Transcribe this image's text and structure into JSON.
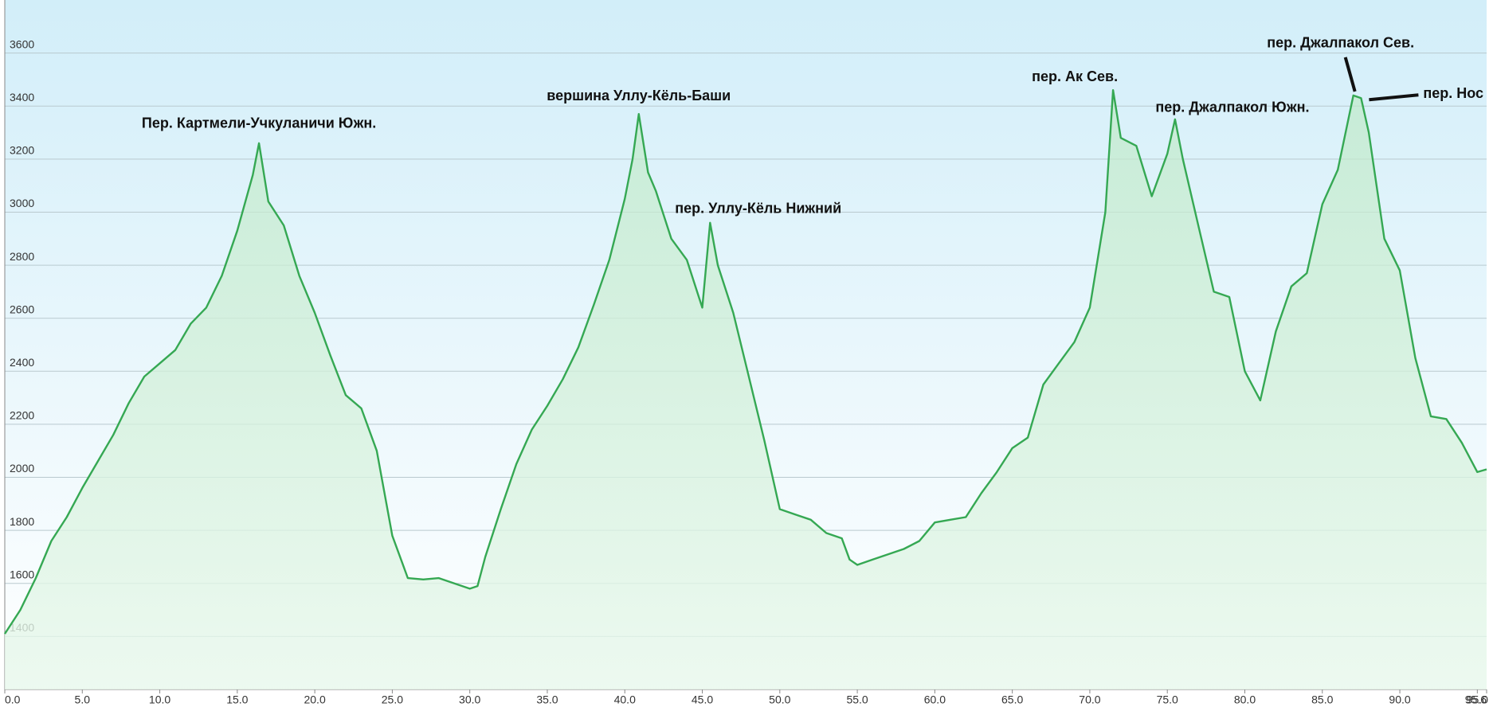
{
  "chart_data": {
    "type": "area",
    "x": [
      0,
      1,
      2,
      3,
      4,
      5,
      6,
      7,
      8,
      9,
      10,
      11,
      12,
      13,
      14,
      15,
      16,
      16.4,
      17,
      18,
      19,
      20,
      21,
      22,
      23,
      24,
      25,
      26,
      27,
      28,
      29,
      30,
      30.5,
      31,
      32,
      33,
      34,
      35,
      36,
      37,
      38,
      39,
      40,
      40.5,
      40.9,
      41.5,
      42,
      43,
      44,
      45,
      45.5,
      46,
      47,
      48,
      49,
      50,
      51,
      52,
      53,
      54,
      54.5,
      55,
      56,
      57,
      58,
      59,
      60,
      61,
      62,
      63,
      64,
      65,
      66,
      67,
      68,
      69,
      70,
      71,
      71.5,
      72,
      73,
      74,
      75,
      75.5,
      76,
      77,
      78,
      79,
      80,
      81,
      82,
      83,
      84,
      85,
      86,
      87,
      87.5,
      88,
      89,
      90,
      91,
      92,
      93,
      94,
      95,
      95.6
    ],
    "series": [
      {
        "color": "#35a853",
        "values": [
          1410,
          1500,
          1620,
          1760,
          1850,
          1960,
          2060,
          2160,
          2280,
          2380,
          2430,
          2480,
          2580,
          2640,
          2760,
          2930,
          3140,
          3260,
          3040,
          2950,
          2760,
          2620,
          2460,
          2310,
          2260,
          2100,
          1780,
          1620,
          1615,
          1620,
          1600,
          1580,
          1590,
          1700,
          1880,
          2050,
          2180,
          2270,
          2370,
          2490,
          2650,
          2820,
          3050,
          3200,
          3370,
          3150,
          3080,
          2900,
          2820,
          2640,
          2960,
          2800,
          2620,
          2380,
          2140,
          1880,
          1860,
          1840,
          1790,
          1770,
          1690,
          1670,
          1690,
          1710,
          1730,
          1760,
          1830,
          1840,
          1850,
          1940,
          2020,
          2110,
          2150,
          2350,
          2430,
          2510,
          2640,
          3000,
          3460,
          3280,
          3250,
          3060,
          3220,
          3350,
          3200,
          2950,
          2700,
          2680,
          2400,
          2290,
          2550,
          2720,
          2770,
          3030,
          3160,
          3440,
          3430,
          3300,
          2900,
          2780,
          2450,
          2230,
          2220,
          2130,
          2020,
          2030
        ]
      }
    ],
    "xlim": [
      0,
      95.6
    ],
    "ylim": [
      1200,
      3800
    ],
    "xticks": [
      {
        "value": 0,
        "label": "0.0"
      },
      {
        "value": 5,
        "label": "5.0"
      },
      {
        "value": 10,
        "label": "10.0"
      },
      {
        "value": 15,
        "label": "15.0"
      },
      {
        "value": 20,
        "label": "20.0"
      },
      {
        "value": 25,
        "label": "25.0"
      },
      {
        "value": 30,
        "label": "30.0"
      },
      {
        "value": 35,
        "label": "35.0"
      },
      {
        "value": 40,
        "label": "40.0"
      },
      {
        "value": 45,
        "label": "45.0"
      },
      {
        "value": 50,
        "label": "50.0"
      },
      {
        "value": 55,
        "label": "55.0"
      },
      {
        "value": 60,
        "label": "60.0"
      },
      {
        "value": 65,
        "label": "65.0"
      },
      {
        "value": 70,
        "label": "70.0"
      },
      {
        "value": 75,
        "label": "75.0"
      },
      {
        "value": 80,
        "label": "80.0"
      },
      {
        "value": 85,
        "label": "85.0"
      },
      {
        "value": 90,
        "label": "90.0"
      },
      {
        "value": 95,
        "label": "95.0"
      },
      {
        "value": 95.6,
        "label": "95.6"
      }
    ],
    "yticks": [
      1400,
      1600,
      1800,
      2000,
      2200,
      2400,
      2600,
      2800,
      3000,
      3200,
      3400,
      3600
    ],
    "grid": true,
    "annotations": [
      {
        "text": "Пер. Картмели-Учкуланичи Южн.",
        "x": 16.4,
        "y": 3260
      },
      {
        "text": "вершина Уллу-Кёль-Баши",
        "x": 40.9,
        "y": 3370
      },
      {
        "text": "пер. Уллу-Кёль Нижний",
        "x": 45.5,
        "y": 2960
      },
      {
        "text": "пер. Ак Сев.",
        "x": 71.5,
        "y": 3460
      },
      {
        "text": "пер. Джалпакол Южн.",
        "x": 75.5,
        "y": 3350
      },
      {
        "text": "пер. Джалпакол Сев.",
        "x": 87,
        "y": 3440
      },
      {
        "text": "пер. Нос",
        "x": 87.5,
        "y": 3430
      }
    ]
  }
}
